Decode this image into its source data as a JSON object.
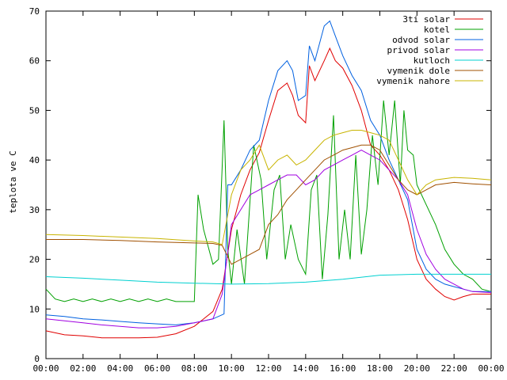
{
  "chart_data": {
    "type": "line",
    "ylabel": "teplota ve C",
    "xlabel": "",
    "title": "",
    "xlim": [
      0,
      24
    ],
    "ylim": [
      0,
      70
    ],
    "y_ticks": [
      0,
      10,
      20,
      30,
      40,
      50,
      60,
      70
    ],
    "x_ticks": [
      {
        "x": 0,
        "label": "00:00"
      },
      {
        "x": 2,
        "label": "02:00"
      },
      {
        "x": 4,
        "label": "04:00"
      },
      {
        "x": 6,
        "label": "06:00"
      },
      {
        "x": 8,
        "label": "08:00"
      },
      {
        "x": 10,
        "label": "10:00"
      },
      {
        "x": 12,
        "label": "12:00"
      },
      {
        "x": 14,
        "label": "14:00"
      },
      {
        "x": 16,
        "label": "16:00"
      },
      {
        "x": 18,
        "label": "18:00"
      },
      {
        "x": 20,
        "label": "20:00"
      },
      {
        "x": 22,
        "label": "22:00"
      },
      {
        "x": 24,
        "label": "00:00"
      }
    ],
    "grid": false,
    "legend_position": "top-right",
    "series": [
      {
        "name": "3ti solar",
        "color": "#e00000",
        "points": [
          [
            0,
            5.6
          ],
          [
            1,
            4.8
          ],
          [
            2,
            4.6
          ],
          [
            3,
            4.2
          ],
          [
            4,
            4.2
          ],
          [
            5,
            4.2
          ],
          [
            6,
            4.3
          ],
          [
            7,
            5
          ],
          [
            8,
            6.5
          ],
          [
            9,
            9.5
          ],
          [
            9.5,
            14
          ],
          [
            10,
            26
          ],
          [
            10.5,
            33
          ],
          [
            11,
            38
          ],
          [
            11.5,
            41.5
          ],
          [
            12,
            48
          ],
          [
            12.5,
            54
          ],
          [
            13,
            55.5
          ],
          [
            13.3,
            53
          ],
          [
            13.6,
            49
          ],
          [
            14,
            47.5
          ],
          [
            14.2,
            59
          ],
          [
            14.5,
            56
          ],
          [
            15,
            60
          ],
          [
            15.3,
            62.5
          ],
          [
            15.6,
            60
          ],
          [
            16,
            58.5
          ],
          [
            16.5,
            55
          ],
          [
            17,
            50
          ],
          [
            17.5,
            43
          ],
          [
            18,
            41
          ],
          [
            18.5,
            38
          ],
          [
            19,
            34
          ],
          [
            19.5,
            28
          ],
          [
            20,
            20
          ],
          [
            20.5,
            16
          ],
          [
            21,
            14
          ],
          [
            21.5,
            12.5
          ],
          [
            22,
            11.8
          ],
          [
            22.5,
            12.5
          ],
          [
            23,
            13
          ],
          [
            23.5,
            13
          ],
          [
            24,
            13
          ]
        ]
      },
      {
        "name": "kotel",
        "color": "#00a000",
        "points": [
          [
            0,
            14
          ],
          [
            0.5,
            12
          ],
          [
            1,
            11.5
          ],
          [
            1.5,
            12
          ],
          [
            2,
            11.5
          ],
          [
            2.5,
            12
          ],
          [
            3,
            11.5
          ],
          [
            3.5,
            12
          ],
          [
            4,
            11.5
          ],
          [
            4.5,
            12
          ],
          [
            5,
            11.5
          ],
          [
            5.5,
            12
          ],
          [
            6,
            11.5
          ],
          [
            6.5,
            12
          ],
          [
            7,
            11.5
          ],
          [
            7.5,
            11.5
          ],
          [
            8,
            11.5
          ],
          [
            8.2,
            33
          ],
          [
            8.5,
            26
          ],
          [
            9,
            19
          ],
          [
            9.3,
            20
          ],
          [
            9.6,
            48
          ],
          [
            9.8,
            22
          ],
          [
            10,
            15
          ],
          [
            10.3,
            26
          ],
          [
            10.7,
            15
          ],
          [
            11.2,
            43
          ],
          [
            11.6,
            36
          ],
          [
            11.9,
            20
          ],
          [
            12.3,
            34
          ],
          [
            12.6,
            37
          ],
          [
            12.9,
            20
          ],
          [
            13.2,
            27
          ],
          [
            13.6,
            20
          ],
          [
            14,
            17
          ],
          [
            14.3,
            34
          ],
          [
            14.6,
            37
          ],
          [
            14.9,
            16
          ],
          [
            15.2,
            29
          ],
          [
            15.5,
            49
          ],
          [
            15.8,
            20
          ],
          [
            16.1,
            30
          ],
          [
            16.4,
            20
          ],
          [
            16.7,
            41
          ],
          [
            17,
            21
          ],
          [
            17.3,
            30
          ],
          [
            17.6,
            45
          ],
          [
            17.9,
            35
          ],
          [
            18.2,
            52
          ],
          [
            18.5,
            41
          ],
          [
            18.8,
            52
          ],
          [
            19.1,
            35
          ],
          [
            19.3,
            50
          ],
          [
            19.5,
            42
          ],
          [
            19.8,
            41
          ],
          [
            20,
            35
          ],
          [
            20.5,
            31
          ],
          [
            21,
            27
          ],
          [
            21.5,
            22
          ],
          [
            22,
            19
          ],
          [
            22.5,
            17
          ],
          [
            23,
            16
          ],
          [
            23.5,
            14
          ],
          [
            24,
            13.5
          ]
        ]
      },
      {
        "name": "odvod solar",
        "color": "#0060e0",
        "points": [
          [
            0,
            8.8
          ],
          [
            1,
            8.5
          ],
          [
            2,
            8
          ],
          [
            3,
            7.8
          ],
          [
            4,
            7.5
          ],
          [
            5,
            7.2
          ],
          [
            6,
            7
          ],
          [
            7,
            6.8
          ],
          [
            8,
            7.2
          ],
          [
            9,
            8
          ],
          [
            9.6,
            9
          ],
          [
            9.8,
            35
          ],
          [
            10,
            35
          ],
          [
            10.5,
            38
          ],
          [
            11,
            42
          ],
          [
            11.5,
            44
          ],
          [
            12,
            52
          ],
          [
            12.5,
            58
          ],
          [
            13,
            60
          ],
          [
            13.3,
            58
          ],
          [
            13.6,
            52
          ],
          [
            14,
            53
          ],
          [
            14.2,
            63
          ],
          [
            14.5,
            60
          ],
          [
            15,
            67
          ],
          [
            15.3,
            68
          ],
          [
            15.6,
            65
          ],
          [
            16,
            61
          ],
          [
            16.5,
            57
          ],
          [
            17,
            54
          ],
          [
            17.5,
            48
          ],
          [
            18,
            45
          ],
          [
            18.5,
            40
          ],
          [
            19,
            36
          ],
          [
            19.5,
            32
          ],
          [
            20,
            22
          ],
          [
            20.5,
            18
          ],
          [
            21,
            16
          ],
          [
            21.5,
            15
          ],
          [
            22,
            14.5
          ],
          [
            22.5,
            14
          ],
          [
            23,
            13.5
          ],
          [
            24,
            13.5
          ]
        ]
      },
      {
        "name": "privod solar",
        "color": "#a000e0",
        "points": [
          [
            0,
            8
          ],
          [
            1,
            7.6
          ],
          [
            2,
            7.2
          ],
          [
            3,
            6.8
          ],
          [
            4,
            6.5
          ],
          [
            5,
            6.2
          ],
          [
            6,
            6.2
          ],
          [
            7,
            6.5
          ],
          [
            8,
            7.2
          ],
          [
            9,
            8
          ],
          [
            9.5,
            13
          ],
          [
            10,
            27
          ],
          [
            10.5,
            30
          ],
          [
            11,
            33
          ],
          [
            11.5,
            34
          ],
          [
            12,
            35
          ],
          [
            12.5,
            36
          ],
          [
            13,
            37
          ],
          [
            13.5,
            37
          ],
          [
            14,
            35
          ],
          [
            14.5,
            36
          ],
          [
            15,
            38
          ],
          [
            15.5,
            39
          ],
          [
            16,
            40
          ],
          [
            16.5,
            41
          ],
          [
            17,
            42
          ],
          [
            17.5,
            41
          ],
          [
            18,
            40
          ],
          [
            18.5,
            38
          ],
          [
            19,
            36
          ],
          [
            19.5,
            33
          ],
          [
            20,
            26
          ],
          [
            20.5,
            21
          ],
          [
            21,
            18
          ],
          [
            21.5,
            16
          ],
          [
            22,
            15
          ],
          [
            22.5,
            14
          ],
          [
            23,
            13.5
          ],
          [
            24,
            13.3
          ]
        ]
      },
      {
        "name": "kutloch",
        "color": "#00d0d0",
        "points": [
          [
            0,
            16.5
          ],
          [
            2,
            16.2
          ],
          [
            4,
            15.8
          ],
          [
            6,
            15.4
          ],
          [
            8,
            15.2
          ],
          [
            10,
            15
          ],
          [
            12,
            15.1
          ],
          [
            14,
            15.4
          ],
          [
            16,
            16
          ],
          [
            18,
            16.8
          ],
          [
            20,
            17
          ],
          [
            22,
            17
          ],
          [
            24,
            17
          ]
        ]
      },
      {
        "name": "vymenik dole",
        "color": "#a05000",
        "points": [
          [
            0,
            24
          ],
          [
            2,
            24
          ],
          [
            4,
            23.8
          ],
          [
            6,
            23.5
          ],
          [
            8,
            23.3
          ],
          [
            9,
            23.2
          ],
          [
            9.5,
            22.8
          ],
          [
            10,
            19
          ],
          [
            10.5,
            20
          ],
          [
            11,
            21
          ],
          [
            11.5,
            22
          ],
          [
            12,
            27
          ],
          [
            12.5,
            29
          ],
          [
            13,
            32
          ],
          [
            13.5,
            34
          ],
          [
            14,
            36
          ],
          [
            14.5,
            38
          ],
          [
            15,
            40
          ],
          [
            15.5,
            41
          ],
          [
            16,
            42
          ],
          [
            16.5,
            42.5
          ],
          [
            17,
            43
          ],
          [
            17.5,
            43
          ],
          [
            18,
            42
          ],
          [
            18.5,
            39
          ],
          [
            19,
            36
          ],
          [
            19.5,
            34
          ],
          [
            20,
            33
          ],
          [
            20.5,
            34
          ],
          [
            21,
            35
          ],
          [
            22,
            35.5
          ],
          [
            23,
            35.2
          ],
          [
            24,
            35
          ]
        ]
      },
      {
        "name": "vymenik nahore",
        "color": "#c8b400",
        "points": [
          [
            0,
            25
          ],
          [
            2,
            24.8
          ],
          [
            4,
            24.5
          ],
          [
            6,
            24.2
          ],
          [
            8,
            23.7
          ],
          [
            9,
            23.5
          ],
          [
            9.5,
            23
          ],
          [
            10,
            33
          ],
          [
            10.5,
            38
          ],
          [
            11,
            40
          ],
          [
            11.5,
            43
          ],
          [
            12,
            38
          ],
          [
            12.5,
            40
          ],
          [
            13,
            41
          ],
          [
            13.5,
            39
          ],
          [
            14,
            40
          ],
          [
            14.5,
            42
          ],
          [
            15,
            44
          ],
          [
            15.5,
            45
          ],
          [
            16,
            45.5
          ],
          [
            16.5,
            46
          ],
          [
            17,
            46
          ],
          [
            17.5,
            45.5
          ],
          [
            18,
            45
          ],
          [
            18.5,
            44
          ],
          [
            19,
            40
          ],
          [
            19.5,
            36
          ],
          [
            20,
            33
          ],
          [
            20.5,
            35
          ],
          [
            21,
            36
          ],
          [
            22,
            36.5
          ],
          [
            23,
            36.3
          ],
          [
            24,
            36
          ]
        ]
      }
    ]
  }
}
